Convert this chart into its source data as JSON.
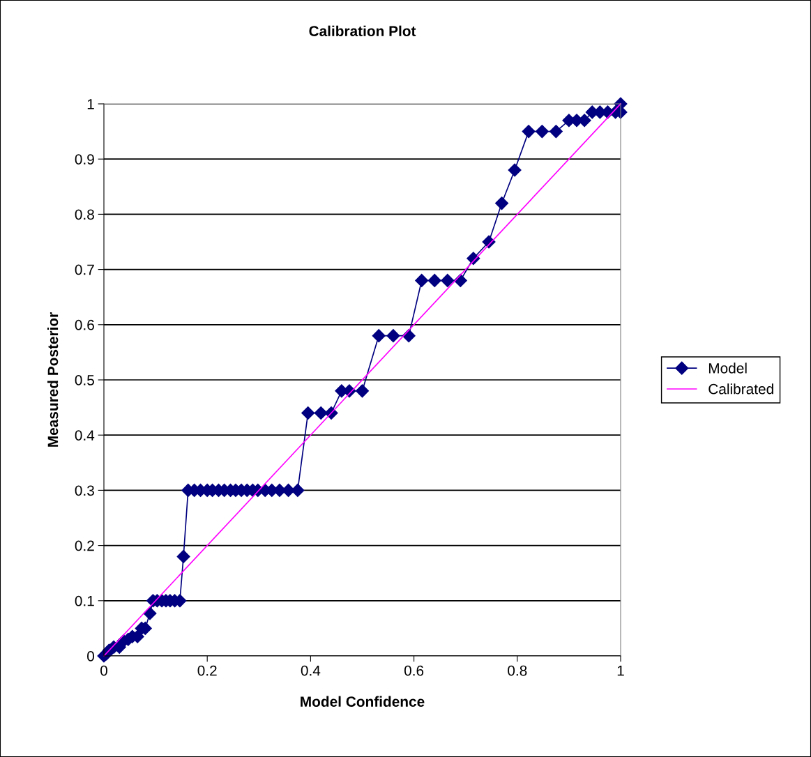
{
  "chart_data": {
    "type": "line",
    "title": "Calibration Plot",
    "xlabel": "Model Confidence",
    "ylabel": "Measured Posterior",
    "xlim": [
      0,
      1
    ],
    "xticks": [
      0,
      0.2,
      0.4,
      0.6,
      0.8,
      1
    ],
    "ylim": [
      0,
      1
    ],
    "yticks": [
      0,
      0.1,
      0.2,
      0.3,
      0.4,
      0.5,
      0.6,
      0.7,
      0.8,
      0.9,
      1
    ],
    "grid": "y",
    "legend": "right",
    "series": [
      {
        "name": "Model",
        "color": "#000080",
        "marker": "diamond",
        "x": [
          0,
          0.005,
          0.01,
          0.019,
          0.03,
          0.038,
          0.047,
          0.055,
          0.065,
          0.073,
          0.08,
          0.089,
          0.095,
          0.103,
          0.112,
          0.12,
          0.128,
          0.137,
          0.147,
          0.154,
          0.163,
          0.175,
          0.187,
          0.2,
          0.21,
          0.222,
          0.233,
          0.245,
          0.255,
          0.266,
          0.277,
          0.288,
          0.298,
          0.312,
          0.325,
          0.34,
          0.357,
          0.375,
          0.395,
          0.42,
          0.44,
          0.46,
          0.475,
          0.5,
          0.532,
          0.56,
          0.59,
          0.615,
          0.64,
          0.665,
          0.69,
          0.715,
          0.745,
          0.77,
          0.795,
          0.822,
          0.848,
          0.875,
          0.9,
          0.915,
          0.93,
          0.945,
          0.96,
          0.975,
          0.99,
          1.0,
          1.0
        ],
        "values": [
          0,
          0.004,
          0.01,
          0.016,
          0.016,
          0.027,
          0.03,
          0.035,
          0.035,
          0.05,
          0.05,
          0.077,
          0.1,
          0.1,
          0.1,
          0.1,
          0.1,
          0.1,
          0.1,
          0.18,
          0.3,
          0.3,
          0.3,
          0.3,
          0.3,
          0.3,
          0.3,
          0.3,
          0.3,
          0.3,
          0.3,
          0.3,
          0.3,
          0.3,
          0.3,
          0.3,
          0.3,
          0.3,
          0.44,
          0.44,
          0.44,
          0.48,
          0.48,
          0.48,
          0.58,
          0.58,
          0.58,
          0.68,
          0.68,
          0.68,
          0.68,
          0.72,
          0.75,
          0.82,
          0.88,
          0.95,
          0.95,
          0.95,
          0.97,
          0.97,
          0.97,
          0.985,
          0.985,
          0.985,
          0.985,
          0.985,
          1.0
        ]
      },
      {
        "name": "Calibrated",
        "color": "#ff00ff",
        "marker": "none",
        "x": [
          0,
          1
        ],
        "values": [
          0,
          1
        ]
      }
    ]
  }
}
